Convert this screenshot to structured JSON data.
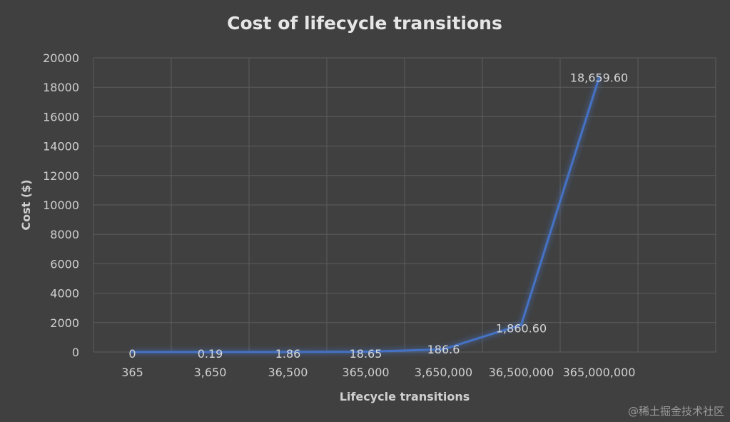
{
  "watermark": "@稀土掘金技术社区",
  "chart_data": {
    "type": "line",
    "title": "Cost of lifecycle transitions",
    "xlabel": "Lifecycle transitions",
    "ylabel": "Cost ($)",
    "categories": [
      "365",
      "3,650",
      "36,500",
      "365,000",
      "3,650,000",
      "36,500,000",
      "365,000,000"
    ],
    "series": [
      {
        "values": [
          0,
          0.19,
          1.86,
          18.65,
          186.6,
          1860.6,
          18659.6
        ],
        "data_labels": [
          "0",
          "0.19",
          "1.86",
          "18.65",
          "186.6",
          "1,860.60",
          "18,659.60"
        ],
        "color": "#4472c4"
      }
    ],
    "ylim": [
      0,
      20000
    ],
    "yticks": [
      0,
      2000,
      4000,
      6000,
      8000,
      10000,
      12000,
      14000,
      16000,
      18000,
      20000
    ],
    "grid": true,
    "legend": "none",
    "colors": {
      "background": "#404040",
      "grid": "#5c5c5c",
      "line": "#4472c4",
      "text": "#cfcfcf"
    }
  }
}
